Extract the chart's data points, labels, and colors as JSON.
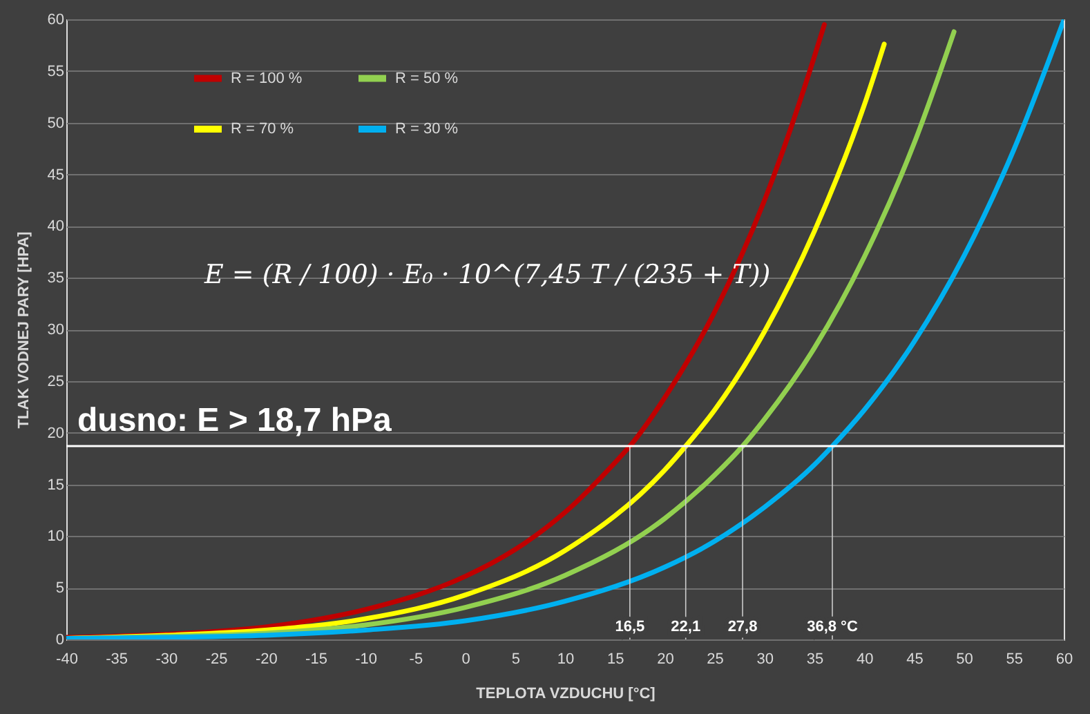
{
  "chart_data": {
    "type": "line",
    "xlabel": "TEPLOTA VZDUCHU [°C]",
    "ylabel": "TLAK VODNEJ PARY [HPA]",
    "xlim": [
      -40,
      60
    ],
    "xticks": [
      -40,
      -35,
      -30,
      -25,
      -20,
      -15,
      -10,
      -5,
      0,
      5,
      10,
      15,
      20,
      25,
      30,
      35,
      40,
      45,
      50,
      55,
      60
    ],
    "ylim": [
      0,
      60
    ],
    "yticks": [
      0,
      5,
      10,
      15,
      20,
      25,
      30,
      35,
      40,
      45,
      50,
      55,
      60
    ],
    "grid": "y",
    "legend": "top left",
    "marker": "none",
    "line_style": "solid",
    "series": [
      {
        "name": "R = 100 %",
        "color": "#c00000",
        "x": [
          -40,
          -30,
          -20,
          -10,
          0,
          5,
          10,
          15,
          16.5,
          20,
          25,
          30,
          35,
          36
        ],
        "values": [
          0.2,
          0.5,
          1.2,
          2.9,
          6.1,
          8.7,
          12.3,
          17.1,
          18.7,
          23.4,
          31.7,
          42.5,
          56.4,
          59.5
        ]
      },
      {
        "name": "R = 70 %",
        "color": "#ffff00",
        "x": [
          -40,
          -30,
          -20,
          -10,
          0,
          10,
          20,
          22.1,
          25,
          30,
          35,
          40,
          42
        ],
        "values": [
          0.1,
          0.4,
          0.9,
          2.0,
          4.3,
          8.6,
          16.4,
          18.7,
          22.2,
          29.8,
          39.5,
          51.7,
          57.6
        ]
      },
      {
        "name": "R = 50 %",
        "color": "#92d050",
        "x": [
          -40,
          -30,
          -20,
          -10,
          0,
          10,
          20,
          25,
          27.8,
          30,
          35,
          40,
          45,
          49
        ],
        "values": [
          0.1,
          0.3,
          0.6,
          1.4,
          3.1,
          6.2,
          11.7,
          15.9,
          18.7,
          21.3,
          28.2,
          37.0,
          48.0,
          58.8
        ]
      },
      {
        "name": "R = 30 %",
        "color": "#00b0f0",
        "x": [
          -40,
          -30,
          -20,
          -10,
          0,
          10,
          20,
          25,
          30,
          35,
          36.8,
          40,
          45,
          50,
          55,
          60
        ],
        "values": [
          0.1,
          0.2,
          0.4,
          0.9,
          1.8,
          3.7,
          7.0,
          9.5,
          12.8,
          16.9,
          18.7,
          22.2,
          28.8,
          37.1,
          47.4,
          59.9
        ]
      }
    ],
    "ref_lines": [
      {
        "axis": "y",
        "value": 18.7,
        "label": "dusno: E > 18,7 hPa",
        "color": "#ffffff"
      }
    ],
    "annotations": [
      "E = (R / 100) · E₀ · 10^(7,45 T / (235 + T))",
      {
        "text": "16,5",
        "x": 16.5,
        "y": 18.7
      },
      {
        "text": "22,1",
        "x": 22.1,
        "y": 18.7
      },
      {
        "text": "27,8",
        "x": 27.8,
        "y": 18.7
      },
      {
        "text": "36,8 °C",
        "x": 36.8,
        "y": 18.7
      }
    ]
  }
}
